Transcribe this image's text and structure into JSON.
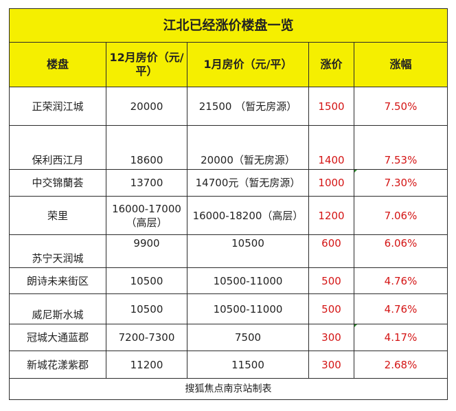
{
  "title": "江北已经涨价楼盘一览",
  "headers": {
    "name": "楼盘",
    "dec_price": "12月房价（元/平）",
    "jan_price": "1月房价（元/平）",
    "increase": "涨价",
    "rate": "涨幅"
  },
  "rows": [
    {
      "name": "正荣润江城",
      "dec": "20000",
      "jan": "21500 （暂无房源）",
      "inc": "1500",
      "rate": "7.50%"
    },
    {
      "name": "保利西江月",
      "dec": "18600",
      "jan": "20000（暂无房源）",
      "inc": "1400",
      "rate": "7.53%"
    },
    {
      "name": "中交锦蘭荟",
      "dec": "13700",
      "jan": "14700元（暂无房源）",
      "inc": "1000",
      "rate": "7.30%"
    },
    {
      "name": "荣里",
      "dec": "16000-17000（高层）",
      "jan": "16000-18200（高层）",
      "inc": "1200",
      "rate": "7.06%"
    },
    {
      "name": "苏宁天润城",
      "dec": "9900",
      "jan": "10500",
      "inc": "600",
      "rate": "6.06%"
    },
    {
      "name": "朗诗未来街区",
      "dec": "10500",
      "jan": "10500-11000",
      "inc": "500",
      "rate": "4.76%"
    },
    {
      "name": "威尼斯水城",
      "dec": "10500",
      "jan": "10500-11000",
      "inc": "500",
      "rate": "4.76%"
    },
    {
      "name": "冠城大通蓝郡",
      "dec": "7200-7300",
      "jan": "7500",
      "inc": "300",
      "rate": "4.17%"
    },
    {
      "name": "新城花漾紫郡",
      "dec": "11200",
      "jan": "11500",
      "inc": "300",
      "rate": "2.68%"
    }
  ],
  "footer": "搜狐焦点南京站制表",
  "colors": {
    "header_bg": "#f5ef00",
    "accent_red": "#d41414"
  }
}
